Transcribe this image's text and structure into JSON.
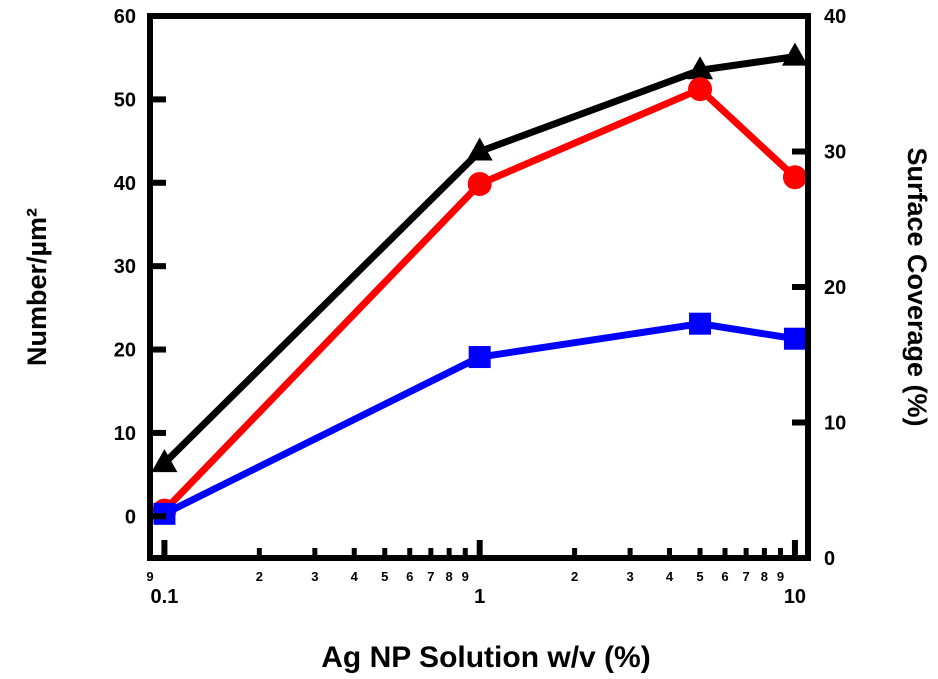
{
  "chart_data": {
    "type": "line",
    "xlabel": "Ag NP Solution w/v (%)",
    "ylabel_left": "Number/µm²",
    "ylabel_right": "Surface Coverage (%)",
    "xscale": "log",
    "xlim": [
      0.09,
      11
    ],
    "ylim_left": [
      -5,
      60
    ],
    "ylim_right": [
      0,
      40
    ],
    "x_major_ticks": [
      {
        "value": 0.1,
        "label": "0.1"
      },
      {
        "value": 1,
        "label": "1"
      },
      {
        "value": 10,
        "label": "10"
      }
    ],
    "x_minor_ticks": [
      {
        "value": 0.09,
        "label": "9"
      },
      {
        "value": 0.2,
        "label": "2"
      },
      {
        "value": 0.3,
        "label": "3"
      },
      {
        "value": 0.4,
        "label": "4"
      },
      {
        "value": 0.5,
        "label": "5"
      },
      {
        "value": 0.6,
        "label": "6"
      },
      {
        "value": 0.7,
        "label": "7"
      },
      {
        "value": 0.8,
        "label": "8"
      },
      {
        "value": 0.9,
        "label": "9"
      },
      {
        "value": 2,
        "label": "2"
      },
      {
        "value": 3,
        "label": "3"
      },
      {
        "value": 4,
        "label": "4"
      },
      {
        "value": 5,
        "label": "5"
      },
      {
        "value": 6,
        "label": "6"
      },
      {
        "value": 7,
        "label": "7"
      },
      {
        "value": 8,
        "label": "8"
      },
      {
        "value": 9,
        "label": "9"
      }
    ],
    "y_left_ticks": [
      {
        "value": 0,
        "label": "0"
      },
      {
        "value": 10,
        "label": "10"
      },
      {
        "value": 20,
        "label": "20"
      },
      {
        "value": 30,
        "label": "30"
      },
      {
        "value": 40,
        "label": "40"
      },
      {
        "value": 50,
        "label": "50"
      },
      {
        "value": 60,
        "label": "60"
      }
    ],
    "y_right_ticks": [
      {
        "value": 0,
        "label": "0"
      },
      {
        "value": 10,
        "label": "10"
      },
      {
        "value": 20,
        "label": "20"
      },
      {
        "value": 30,
        "label": "30"
      },
      {
        "value": 40,
        "label": "40"
      }
    ],
    "grid": false,
    "legend": "none",
    "series": [
      {
        "axis": "right",
        "marker": "triangle",
        "color": "#000000",
        "x": [
          0.1,
          1,
          5,
          10
        ],
        "y": [
          7.0,
          30.0,
          36.0,
          37.0
        ]
      },
      {
        "axis": "right",
        "marker": "circle",
        "color": "#ff0000",
        "x": [
          0.1,
          1,
          5,
          10
        ],
        "y": [
          3.5,
          27.6,
          34.6,
          28.1
        ]
      },
      {
        "axis": "left",
        "marker": "square",
        "color": "#0000ff",
        "x": [
          0.1,
          1,
          5,
          10
        ],
        "y": [
          0.3,
          19.1,
          23.1,
          21.3
        ]
      }
    ]
  }
}
